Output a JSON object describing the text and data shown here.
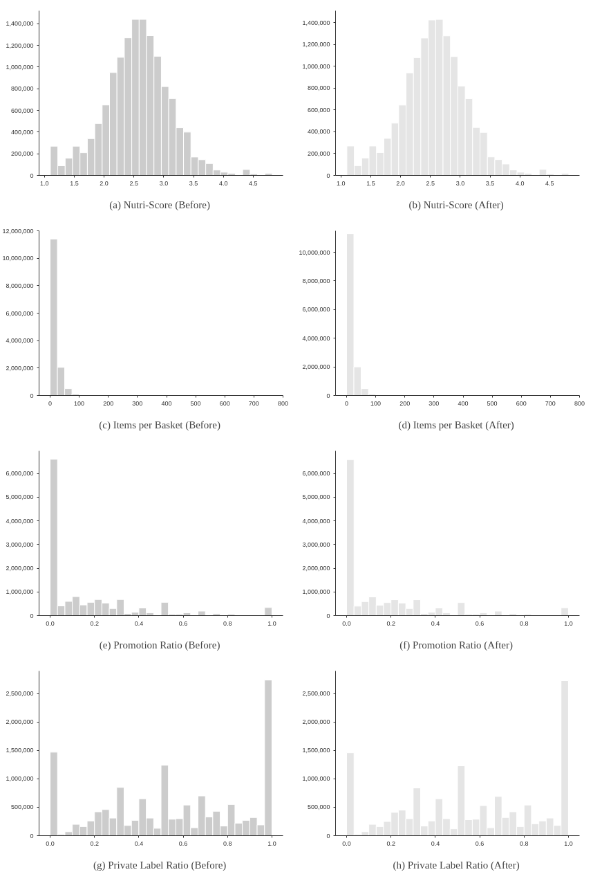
{
  "chart_data": [
    {
      "type": "histogram",
      "title": "(a)  Nutri-Score (Before)",
      "color": "#cccccc",
      "bins": [
        1.1,
        1.224,
        1.348,
        1.472,
        1.596,
        1.72,
        1.844,
        1.968,
        2.092,
        2.216,
        2.34,
        2.464,
        2.588,
        2.712,
        2.836,
        2.96,
        3.084,
        3.208,
        3.332,
        3.456,
        3.58,
        3.704,
        3.828,
        3.952,
        4.076,
        4.2,
        4.324,
        4.448,
        4.572,
        4.696,
        4.82
      ],
      "values": [
        270000,
        90000,
        160000,
        270000,
        210000,
        340000,
        480000,
        650000,
        950000,
        1090000,
        1270000,
        1440000,
        1440000,
        1290000,
        1100000,
        820000,
        710000,
        440000,
        400000,
        170000,
        145000,
        110000,
        50000,
        30000,
        20000,
        5000,
        55000,
        15000,
        0,
        20000
      ],
      "xlim": [
        0.91,
        5.0
      ],
      "xticks": [
        {
          "value": 1.0,
          "label": "1.0"
        },
        1.5,
        {
          "value": 2.0,
          "label": "2.0"
        },
        2.5,
        {
          "value": 3.0,
          "label": "3.0"
        },
        3.5,
        {
          "value": 4.0,
          "label": "4.0"
        },
        4.5
      ],
      "ylim": [
        0,
        1520000
      ],
      "yticks": [
        0,
        {
          "value": 200000,
          "label": "200,000"
        },
        {
          "value": 400000,
          "label": "400,000"
        },
        {
          "value": 600000,
          "label": "600,000"
        },
        {
          "value": 800000,
          "label": "800,000"
        },
        {
          "value": 1000000,
          "label": "1,000,000"
        },
        {
          "value": 1200000,
          "label": "1,200,000"
        },
        {
          "value": 1400000,
          "label": "1,400,000"
        }
      ]
    },
    {
      "type": "histogram",
      "title": "(b)  Nutri-Score (After)",
      "color": "#e5e5e5",
      "bins": [
        1.1,
        1.224,
        1.348,
        1.472,
        1.596,
        1.72,
        1.844,
        1.968,
        2.092,
        2.216,
        2.34,
        2.464,
        2.588,
        2.712,
        2.836,
        2.96,
        3.084,
        3.208,
        3.332,
        3.456,
        3.58,
        3.704,
        3.828,
        3.952,
        4.076,
        4.2,
        4.324,
        4.448,
        4.572,
        4.696,
        4.82
      ],
      "values": [
        270000,
        90000,
        160000,
        270000,
        210000,
        340000,
        480000,
        645000,
        940000,
        1080000,
        1260000,
        1425000,
        1430000,
        1280000,
        1090000,
        820000,
        705000,
        440000,
        395000,
        170000,
        145000,
        105000,
        50000,
        30000,
        20000,
        5000,
        55000,
        15000,
        0,
        20000
      ],
      "xlim": [
        0.91,
        5.0
      ],
      "xticks": [
        {
          "value": 1.0,
          "label": "1.0"
        },
        1.5,
        {
          "value": 2.0,
          "label": "2.0"
        },
        2.5,
        {
          "value": 3.0,
          "label": "3.0"
        },
        3.5,
        {
          "value": 4.0,
          "label": "4.0"
        },
        4.5
      ],
      "ylim": [
        0,
        1510000
      ],
      "yticks": [
        0,
        {
          "value": 200000,
          "label": "200,000"
        },
        {
          "value": 400000,
          "label": "400,000"
        },
        {
          "value": 600000,
          "label": "600,000"
        },
        {
          "value": 800000,
          "label": "800,000"
        },
        {
          "value": 1000000,
          "label": "1,000,000"
        },
        {
          "value": 1200000,
          "label": "1,200,000"
        },
        {
          "value": 1400000,
          "label": "1,400,000"
        }
      ]
    },
    {
      "type": "histogram",
      "title": "(c)  Items per Basket (Before)",
      "color": "#cccccc",
      "bins": [
        0,
        25,
        50,
        75,
        100,
        125,
        150,
        175,
        200,
        225,
        250,
        275,
        300,
        325,
        350,
        375,
        400,
        425,
        450,
        475,
        500,
        525,
        550,
        575,
        600,
        625,
        650,
        675,
        700,
        725,
        750
      ],
      "values": [
        11400000,
        2050000,
        500000,
        100000,
        0,
        0,
        0,
        0,
        0,
        0,
        0,
        0,
        0,
        0,
        0,
        0,
        0,
        0,
        0,
        0,
        0,
        0,
        0,
        0,
        0,
        0,
        0,
        0,
        0,
        0
      ],
      "xlim": [
        -38,
        800
      ],
      "xticks": [
        0,
        100,
        200,
        300,
        400,
        500,
        600,
        700,
        800
      ],
      "ylim": [
        0,
        12000000
      ],
      "yticks": [
        0,
        {
          "value": 2000000,
          "label": "2,000,000"
        },
        {
          "value": 4000000,
          "label": "4,000,000"
        },
        {
          "value": 6000000,
          "label": "6,000,000"
        },
        {
          "value": 8000000,
          "label": "8,000,000"
        },
        {
          "value": 10000000,
          "label": "10,000,000"
        },
        {
          "value": 12000000,
          "label": "12,000,000"
        }
      ]
    },
    {
      "type": "histogram",
      "title": "(d)  Items per Basket (After)",
      "color": "#e5e5e5",
      "bins": [
        0,
        25,
        50,
        75,
        100,
        125,
        150,
        175,
        200,
        225,
        250,
        275,
        300,
        325,
        350,
        375,
        400,
        425,
        450,
        475,
        500,
        525,
        550,
        575,
        600,
        625,
        650,
        675,
        700,
        725,
        750
      ],
      "values": [
        11300000,
        2000000,
        480000,
        100000,
        0,
        0,
        0,
        0,
        0,
        0,
        0,
        0,
        0,
        0,
        0,
        0,
        0,
        0,
        0,
        0,
        0,
        0,
        0,
        0,
        0,
        0,
        0,
        0,
        0,
        0
      ],
      "xlim": [
        -38,
        800
      ],
      "xticks": [
        0,
        100,
        200,
        300,
        400,
        500,
        600,
        700,
        800
      ],
      "ylim": [
        0,
        11500000
      ],
      "yticks": [
        0,
        {
          "value": 2000000,
          "label": "2,000,000"
        },
        {
          "value": 4000000,
          "label": "4,000,000"
        },
        {
          "value": 6000000,
          "label": "6,000,000"
        },
        {
          "value": 8000000,
          "label": "8,000,000"
        },
        {
          "value": 10000000,
          "label": "10,000,000"
        }
      ]
    },
    {
      "type": "histogram",
      "title": "(e)  Promotion Ratio (Before)",
      "color": "#cccccc",
      "bins": [
        0,
        0.0333,
        0.0667,
        0.1,
        0.1333,
        0.1667,
        0.2,
        0.2333,
        0.2667,
        0.3,
        0.3333,
        0.3667,
        0.4,
        0.4333,
        0.4667,
        0.5,
        0.5333,
        0.5667,
        0.6,
        0.6333,
        0.6667,
        0.7,
        0.7333,
        0.7667,
        0.8,
        0.8333,
        0.8667,
        0.9,
        0.9333,
        0.9667,
        1.0
      ],
      "values": [
        6600000,
        410000,
        600000,
        800000,
        450000,
        560000,
        680000,
        530000,
        300000,
        680000,
        90000,
        140000,
        320000,
        120000,
        0,
        560000,
        60000,
        60000,
        120000,
        0,
        190000,
        0,
        80000,
        0,
        60000,
        0,
        0,
        0,
        0,
        340000
      ],
      "xlim": [
        -0.05,
        1.05
      ],
      "xticks": [
        {
          "value": 0,
          "label": "0.0"
        },
        0.2,
        0.4,
        0.6,
        0.8,
        {
          "value": 1,
          "label": "1.0"
        }
      ],
      "ylim": [
        0,
        6950000
      ],
      "yticks": [
        0,
        {
          "value": 1000000,
          "label": "1,000,000"
        },
        {
          "value": 2000000,
          "label": "2,000,000"
        },
        {
          "value": 3000000,
          "label": "3,000,000"
        },
        {
          "value": 4000000,
          "label": "4,000,000"
        },
        {
          "value": 5000000,
          "label": "5,000,000"
        },
        {
          "value": 6000000,
          "label": "6,000,000"
        }
      ]
    },
    {
      "type": "histogram",
      "title": "(f)  Promotion Ratio (After)",
      "color": "#e5e5e5",
      "bins": [
        0,
        0.0333,
        0.0667,
        0.1,
        0.1333,
        0.1667,
        0.2,
        0.2333,
        0.2667,
        0.3,
        0.3333,
        0.3667,
        0.4,
        0.4333,
        0.4667,
        0.5,
        0.5333,
        0.5667,
        0.6,
        0.6333,
        0.6667,
        0.7,
        0.7333,
        0.7667,
        0.8,
        0.8333,
        0.8667,
        0.9,
        0.9333,
        0.9667,
        1.0
      ],
      "values": [
        6580000,
        400000,
        590000,
        790000,
        440000,
        550000,
        670000,
        530000,
        300000,
        670000,
        90000,
        140000,
        320000,
        120000,
        0,
        550000,
        60000,
        60000,
        120000,
        0,
        190000,
        0,
        80000,
        0,
        60000,
        0,
        0,
        0,
        0,
        330000
      ],
      "xlim": [
        -0.05,
        1.05
      ],
      "xticks": [
        {
          "value": 0,
          "label": "0.0"
        },
        0.2,
        0.4,
        0.6,
        0.8,
        {
          "value": 1,
          "label": "1.0"
        }
      ],
      "ylim": [
        0,
        6950000
      ],
      "yticks": [
        0,
        {
          "value": 1000000,
          "label": "1,000,000"
        },
        {
          "value": 2000000,
          "label": "2,000,000"
        },
        {
          "value": 3000000,
          "label": "3,000,000"
        },
        {
          "value": 4000000,
          "label": "4,000,000"
        },
        {
          "value": 5000000,
          "label": "5,000,000"
        },
        {
          "value": 6000000,
          "label": "6,000,000"
        }
      ]
    },
    {
      "type": "histogram",
      "title": "(g)  Private Label Ratio (Before)",
      "color": "#cccccc",
      "bins": [
        0,
        0.0333,
        0.0667,
        0.1,
        0.1333,
        0.1667,
        0.2,
        0.2333,
        0.2667,
        0.3,
        0.3333,
        0.3667,
        0.4,
        0.4333,
        0.4667,
        0.5,
        0.5333,
        0.5667,
        0.6,
        0.6333,
        0.6667,
        0.7,
        0.7333,
        0.7667,
        0.8,
        0.8333,
        0.8667,
        0.9,
        0.9333,
        0.9667,
        1.0
      ],
      "values": [
        1470000,
        20000,
        70000,
        200000,
        160000,
        260000,
        420000,
        460000,
        310000,
        850000,
        180000,
        270000,
        650000,
        310000,
        130000,
        1240000,
        290000,
        300000,
        540000,
        140000,
        700000,
        330000,
        430000,
        170000,
        550000,
        220000,
        270000,
        320000,
        190000,
        2740000
      ],
      "xlim": [
        -0.05,
        1.05
      ],
      "xticks": [
        {
          "value": 0,
          "label": "0.0"
        },
        0.2,
        0.4,
        0.6,
        0.8,
        {
          "value": 1,
          "label": "1.0"
        }
      ],
      "ylim": [
        0,
        2900000
      ],
      "yticks": [
        0,
        {
          "value": 500000,
          "label": "500,000"
        },
        {
          "value": 1000000,
          "label": "1,000,000"
        },
        {
          "value": 1500000,
          "label": "1,500,000"
        },
        {
          "value": 2000000,
          "label": "2,000,000"
        },
        {
          "value": 2500000,
          "label": "2,500,000"
        }
      ]
    },
    {
      "type": "histogram",
      "title": "(h)  Private Label Ratio (After)",
      "color": "#e5e5e5",
      "bins": [
        0,
        0.0333,
        0.0667,
        0.1,
        0.1333,
        0.1667,
        0.2,
        0.2333,
        0.2667,
        0.3,
        0.3333,
        0.3667,
        0.4,
        0.4333,
        0.4667,
        0.5,
        0.5333,
        0.5667,
        0.6,
        0.6333,
        0.6667,
        0.7,
        0.7333,
        0.7667,
        0.8,
        0.8333,
        0.8667,
        0.9,
        0.9333,
        0.9667,
        1.0
      ],
      "values": [
        1460000,
        20000,
        70000,
        200000,
        160000,
        250000,
        410000,
        450000,
        300000,
        840000,
        170000,
        260000,
        650000,
        300000,
        120000,
        1230000,
        280000,
        290000,
        530000,
        140000,
        690000,
        320000,
        420000,
        160000,
        540000,
        210000,
        260000,
        310000,
        180000,
        2730000
      ],
      "xlim": [
        -0.05,
        1.05
      ],
      "xticks": [
        {
          "value": 0,
          "label": "0.0"
        },
        0.2,
        0.4,
        0.6,
        0.8,
        {
          "value": 1,
          "label": "1.0"
        }
      ],
      "ylim": [
        0,
        2900000
      ],
      "yticks": [
        0,
        {
          "value": 500000,
          "label": "500,000"
        },
        {
          "value": 1000000,
          "label": "1,000,000"
        },
        {
          "value": 1500000,
          "label": "1,500,000"
        },
        {
          "value": 2000000,
          "label": "2,000,000"
        },
        {
          "value": 2500000,
          "label": "2,500,000"
        }
      ]
    }
  ]
}
